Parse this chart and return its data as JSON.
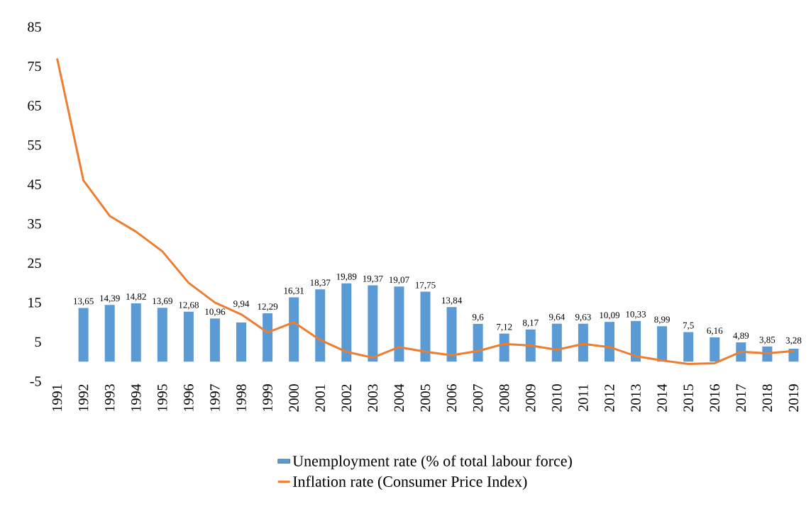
{
  "chart_data": {
    "type": "bar",
    "categories": [
      "1991",
      "1992",
      "1993",
      "1994",
      "1995",
      "1996",
      "1997",
      "1998",
      "1999",
      "2000",
      "2001",
      "2002",
      "2003",
      "2004",
      "2005",
      "2006",
      "2007",
      "2008",
      "2009",
      "2010",
      "2011",
      "2012",
      "2013",
      "2014",
      "2015",
      "2016",
      "2017",
      "2018",
      "2019"
    ],
    "series": [
      {
        "name": "Unemployment rate (% of total labour force)",
        "color": "#5b9bd5",
        "values": [
          null,
          13.65,
          14.39,
          14.82,
          13.69,
          12.68,
          10.96,
          9.94,
          12.29,
          16.31,
          18.37,
          19.89,
          19.37,
          19.07,
          17.75,
          13.84,
          9.6,
          7.12,
          8.17,
          9.64,
          9.63,
          10.09,
          10.33,
          8.99,
          7.5,
          6.16,
          4.89,
          3.85,
          3.28
        ],
        "value_labels": [
          null,
          "13,65",
          "14,39",
          "14,82",
          "13,69",
          "12,68",
          "10,96",
          "9,94",
          "12,29",
          "16,31",
          "18,37",
          "19,89",
          "19,37",
          "19,07",
          "17,75",
          "13,84",
          "9,6",
          "7,12",
          "8,17",
          "9,64",
          "9,63",
          "10,09",
          "10,33",
          "8,99",
          "7,5",
          "6,16",
          "4,89",
          "3,85",
          "3,28"
        ]
      },
      {
        "name": "Inflation rate (Consumer Price Index)",
        "type": "line",
        "color": "#ed7d31",
        "values": [
          77,
          46,
          37,
          33,
          28,
          20,
          15,
          12,
          7.4,
          10,
          5.5,
          2.5,
          1,
          3.7,
          2.5,
          1.6,
          2.7,
          4.5,
          4.1,
          3,
          4.5,
          3.7,
          1.4,
          0.3,
          -0.6,
          -0.4,
          2.5,
          2.1,
          2.7
        ]
      }
    ],
    "ylim": [
      -5,
      85
    ],
    "yticks": [
      -5,
      5,
      15,
      25,
      35,
      45,
      55,
      65,
      75,
      85
    ],
    "legend": "bottom",
    "marker": "none"
  }
}
